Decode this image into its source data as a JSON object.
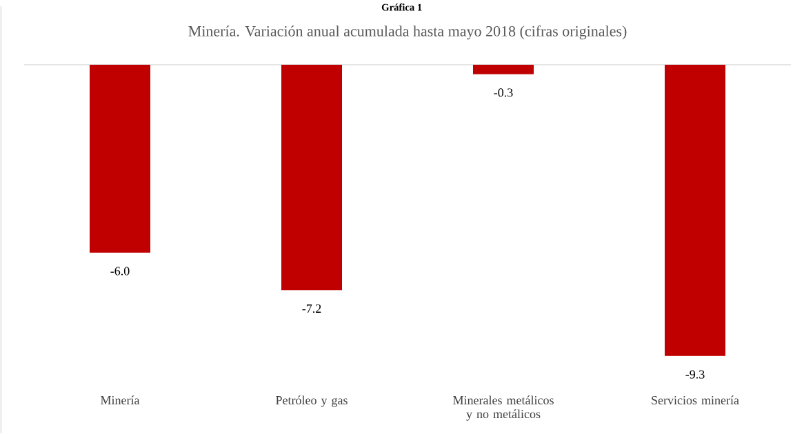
{
  "chart_data": {
    "type": "bar",
    "title": "Minería. Variación anual acumulada hasta mayo 2018 (cifras originales)",
    "annotations": [
      "Gráfica 1"
    ],
    "categories": [
      "Minería",
      "Petróleo y gas",
      "Minerales metálicos y no metálicos",
      "Servicios minería"
    ],
    "values": [
      -6.0,
      -7.2,
      -0.3,
      -9.3
    ],
    "color": "#c00000",
    "value_labels": [
      "-6.0",
      "-7.2",
      "-0.3",
      "-9.3"
    ]
  }
}
